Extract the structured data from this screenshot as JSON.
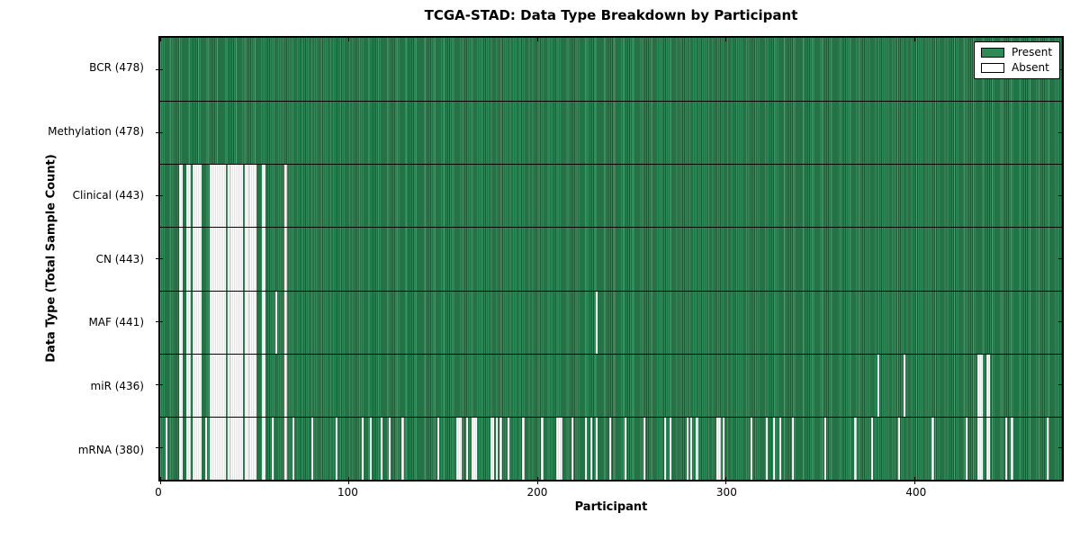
{
  "chart_data": {
    "type": "heatmap",
    "title": "TCGA-STAD: Data Type Breakdown by Participant",
    "xlabel": "Participant",
    "ylabel": "Data Type (Total Sample Count)",
    "n_participants": 478,
    "x_ticks": [
      0,
      100,
      200,
      300,
      400
    ],
    "legend_position": "upper right",
    "grid": false,
    "colors": {
      "present": "#2e8b57",
      "present_edge": "#1c5835",
      "absent": "#ffffff",
      "absent_edge": "#c9c9c9"
    },
    "legend": [
      {
        "label": "Present",
        "color": "#2e8b57"
      },
      {
        "label": "Absent",
        "color": "#ffffff"
      }
    ],
    "rows": [
      {
        "label": "BCR (478)",
        "data_type": "BCR",
        "total_sample_count": 478,
        "absent_participants": []
      },
      {
        "label": "Methylation (478)",
        "data_type": "Methylation",
        "total_sample_count": 478,
        "absent_participants": []
      },
      {
        "label": "Clinical (443)",
        "data_type": "Clinical",
        "total_sample_count": 443,
        "absent_participants": [
          10,
          11,
          14,
          15,
          17,
          18,
          19,
          20,
          21,
          26,
          27,
          28,
          29,
          30,
          31,
          32,
          33,
          34,
          36,
          37,
          38,
          39,
          40,
          41,
          42,
          43,
          45,
          46,
          47,
          48,
          49,
          50,
          54,
          55,
          66
        ]
      },
      {
        "label": "CN (443)",
        "data_type": "CN",
        "total_sample_count": 443,
        "absent_participants": [
          10,
          11,
          14,
          15,
          17,
          18,
          19,
          20,
          21,
          26,
          27,
          28,
          29,
          30,
          31,
          32,
          33,
          34,
          36,
          37,
          38,
          39,
          40,
          41,
          42,
          43,
          45,
          46,
          47,
          48,
          49,
          50,
          54,
          55,
          66
        ]
      },
      {
        "label": "MAF (441)",
        "data_type": "MAF",
        "total_sample_count": 441,
        "absent_participants": [
          10,
          11,
          14,
          15,
          17,
          18,
          19,
          20,
          21,
          26,
          27,
          28,
          29,
          30,
          31,
          32,
          33,
          34,
          36,
          37,
          38,
          39,
          40,
          41,
          42,
          43,
          45,
          46,
          47,
          48,
          49,
          50,
          54,
          55,
          61,
          66,
          231
        ]
      },
      {
        "label": "miR (436)",
        "data_type": "miR",
        "total_sample_count": 436,
        "absent_participants": [
          10,
          11,
          14,
          15,
          17,
          18,
          19,
          20,
          21,
          26,
          27,
          28,
          29,
          30,
          31,
          32,
          33,
          34,
          36,
          37,
          38,
          39,
          40,
          41,
          42,
          43,
          45,
          46,
          47,
          48,
          49,
          50,
          54,
          55,
          66,
          380,
          394,
          433,
          434,
          435,
          438,
          439
        ]
      },
      {
        "label": "mRNA (380)",
        "data_type": "mRNA",
        "total_sample_count": 380,
        "absent_participants": [
          3,
          10,
          11,
          14,
          15,
          17,
          18,
          19,
          20,
          21,
          24,
          26,
          27,
          28,
          29,
          30,
          31,
          32,
          33,
          34,
          36,
          37,
          38,
          39,
          40,
          41,
          42,
          43,
          45,
          46,
          47,
          48,
          49,
          50,
          54,
          55,
          59,
          66,
          70,
          80,
          93,
          107,
          111,
          117,
          121,
          128,
          147,
          157,
          158,
          159,
          162,
          165,
          166,
          167,
          175,
          176,
          178,
          180,
          184,
          192,
          202,
          210,
          211,
          212,
          218,
          225,
          228,
          231,
          238,
          246,
          256,
          267,
          270,
          279,
          281,
          284,
          295,
          296,
          298,
          313,
          321,
          325,
          328,
          335,
          352,
          368,
          377,
          391,
          409,
          427,
          433,
          434,
          435,
          438,
          439,
          448,
          451,
          470
        ]
      }
    ]
  }
}
